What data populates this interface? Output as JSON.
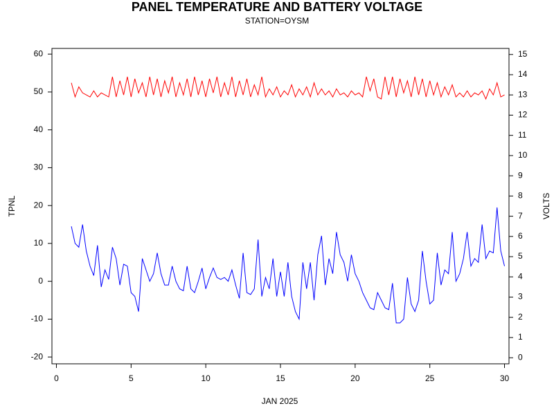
{
  "chart_data": {
    "type": "line",
    "title": "PANEL TEMPERATURE AND BATTERY VOLTAGE",
    "subtitle": "STATION=OYSM",
    "x_label": "JAN 2025",
    "y_label": "TPNL",
    "y2_label": "VOLTS",
    "xlim": [
      -0.3,
      30.3
    ],
    "xticks": [
      0,
      5,
      10,
      15,
      20,
      25,
      30
    ],
    "ylim": [
      -21.8,
      61.5
    ],
    "yticks": [
      -20,
      -10,
      0,
      10,
      20,
      30,
      40,
      50,
      60
    ],
    "y2lim": [
      -0.3,
      15.3
    ],
    "y2ticks": [
      0,
      1,
      2,
      3,
      4,
      5,
      6,
      7,
      8,
      9,
      10,
      11,
      12,
      13,
      14,
      15
    ],
    "x": [
      1,
      1.25,
      1.5,
      1.75,
      2,
      2.25,
      2.5,
      2.75,
      3,
      3.25,
      3.5,
      3.75,
      4,
      4.25,
      4.5,
      4.75,
      5,
      5.25,
      5.5,
      5.75,
      6,
      6.25,
      6.5,
      6.75,
      7,
      7.25,
      7.5,
      7.75,
      8,
      8.25,
      8.5,
      8.75,
      9,
      9.25,
      9.5,
      9.75,
      10,
      10.25,
      10.5,
      10.75,
      11,
      11.25,
      11.5,
      11.75,
      12,
      12.25,
      12.5,
      12.75,
      13,
      13.25,
      13.5,
      13.75,
      14,
      14.25,
      14.5,
      14.75,
      15,
      15.25,
      15.5,
      15.75,
      16,
      16.25,
      16.5,
      16.75,
      17,
      17.25,
      17.5,
      17.75,
      18,
      18.25,
      18.5,
      18.75,
      19,
      19.25,
      19.5,
      19.75,
      20,
      20.25,
      20.5,
      20.75,
      21,
      21.25,
      21.5,
      21.75,
      22,
      22.25,
      22.5,
      22.75,
      23,
      23.25,
      23.5,
      23.75,
      24,
      24.25,
      24.5,
      24.75,
      25,
      25.25,
      25.5,
      25.75,
      26,
      26.25,
      26.5,
      26.75,
      27,
      27.25,
      27.5,
      27.75,
      28,
      28.25,
      28.5,
      28.75,
      29,
      29.25,
      29.5,
      29.75,
      30
    ],
    "series": [
      {
        "color": "#0000ff",
        "values": [
          14.5,
          10,
          9,
          15,
          8,
          4,
          1.5,
          9.5,
          -1.5,
          3,
          0.5,
          9,
          6,
          -1,
          4.5,
          4,
          -3,
          -4,
          -8,
          6,
          3,
          0,
          2,
          7.5,
          2,
          -1,
          -1,
          4,
          0,
          -2,
          -2.5,
          4,
          -2,
          -3,
          0,
          3.5,
          -2,
          1,
          3.5,
          1,
          0.5,
          1,
          0,
          3,
          -1,
          -4.5,
          7.5,
          -3,
          -3.5,
          -2,
          11,
          -4,
          1,
          -2,
          6,
          -4,
          2.5,
          -4,
          5,
          -4,
          -8,
          -10,
          5,
          -2,
          5,
          -5,
          7,
          12,
          -1,
          6,
          2,
          13,
          7,
          5,
          0,
          7,
          2,
          0,
          -3,
          -5,
          -7,
          -7.5,
          -3,
          -5,
          -7,
          -7.5,
          -0.5,
          -11,
          -11,
          -10,
          1,
          -6,
          -8,
          -5,
          8,
          0,
          -6,
          -5,
          7.5,
          -1,
          3,
          2,
          13,
          0,
          2,
          6,
          13,
          4,
          6,
          5,
          15,
          6,
          8,
          7.5,
          19.5,
          8,
          4
        ]
      },
      {
        "color": "#ff0000",
        "axis": "y2",
        "values": [
          13.6,
          12.9,
          13.4,
          13.1,
          13.0,
          12.9,
          13.2,
          12.9,
          13.1,
          13.0,
          12.9,
          13.9,
          12.9,
          13.7,
          13.0,
          13.9,
          12.9,
          13.8,
          13.1,
          13.6,
          12.9,
          13.9,
          13.0,
          13.8,
          12.9,
          13.7,
          13.1,
          13.9,
          12.9,
          13.6,
          13.0,
          13.8,
          12.9,
          13.9,
          13.0,
          13.7,
          12.9,
          13.8,
          13.1,
          13.9,
          12.9,
          13.6,
          13.0,
          13.9,
          12.9,
          13.7,
          13.0,
          13.8,
          12.9,
          13.5,
          13.0,
          13.9,
          12.9,
          13.3,
          13.0,
          13.4,
          12.9,
          13.2,
          13.0,
          13.5,
          12.9,
          13.3,
          13.0,
          13.4,
          12.9,
          13.6,
          13.0,
          13.3,
          13.0,
          13.2,
          12.9,
          13.3,
          13.0,
          13.1,
          12.9,
          13.2,
          13.0,
          13.1,
          12.9,
          13.9,
          13.2,
          13.8,
          12.9,
          12.8,
          13.9,
          13.0,
          13.9,
          12.9,
          13.8,
          13.1,
          13.7,
          12.9,
          13.9,
          13.0,
          13.8,
          12.9,
          13.7,
          13.0,
          13.6,
          12.9,
          13.4,
          13.0,
          13.5,
          12.9,
          13.1,
          12.9,
          13.2,
          12.9,
          13.1,
          13.0,
          13.2,
          12.8,
          13.3,
          13.0,
          13.6,
          12.9,
          13.0
        ]
      }
    ]
  }
}
